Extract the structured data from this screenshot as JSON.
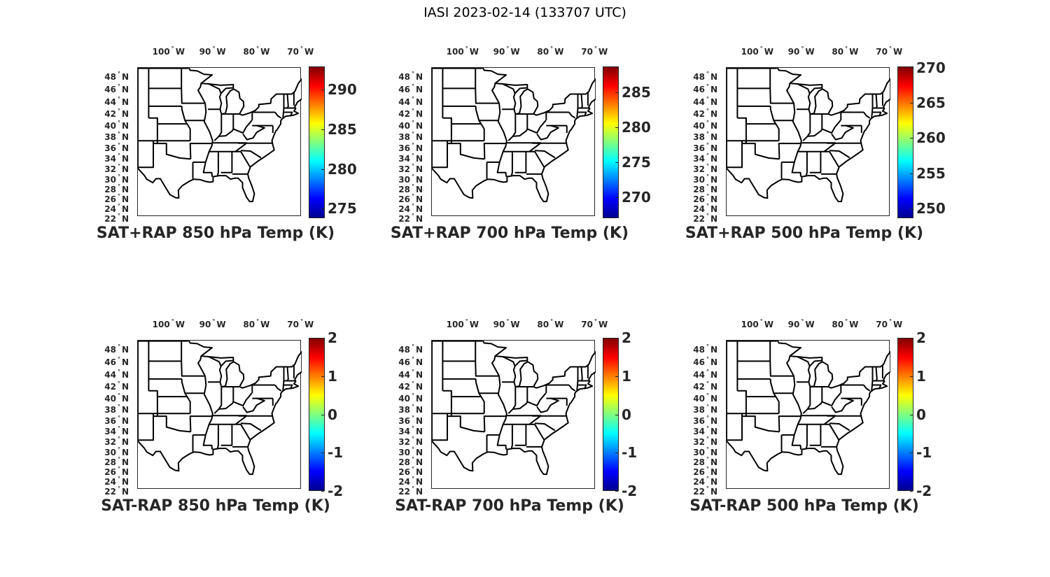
{
  "figure_title": "IASI 2023-02-14 (133707 UTC)",
  "lon_labels": [
    {
      "lon": -100,
      "text": "100",
      "hemi": "W"
    },
    {
      "lon": -90,
      "text": "90",
      "hemi": "W"
    },
    {
      "lon": -80,
      "text": "80",
      "hemi": "W"
    },
    {
      "lon": -70,
      "text": "70",
      "hemi": "W"
    }
  ],
  "lat_labels": [
    {
      "lat": 48,
      "text": "48",
      "hemi": "N"
    },
    {
      "lat": 46,
      "text": "46",
      "hemi": "N"
    },
    {
      "lat": 44,
      "text": "44",
      "hemi": "N"
    },
    {
      "lat": 42,
      "text": "42",
      "hemi": "N"
    },
    {
      "lat": 40,
      "text": "40",
      "hemi": "N"
    },
    {
      "lat": 38,
      "text": "38",
      "hemi": "N"
    },
    {
      "lat": 36,
      "text": "36",
      "hemi": "N"
    },
    {
      "lat": 34,
      "text": "34",
      "hemi": "N"
    },
    {
      "lat": 32,
      "text": "32",
      "hemi": "N"
    },
    {
      "lat": 30,
      "text": "30",
      "hemi": "N"
    },
    {
      "lat": 28,
      "text": "28",
      "hemi": "N"
    },
    {
      "lat": 26,
      "text": "26",
      "hemi": "N"
    },
    {
      "lat": 24,
      "text": "24",
      "hemi": "N"
    },
    {
      "lat": 22,
      "text": "22",
      "hemi": "N"
    }
  ],
  "map_extent": {
    "lon": [
      -106.5,
      -69.2
    ],
    "lat": [
      22,
      49.3
    ]
  },
  "colormap": "jet",
  "panels": [
    {
      "title": "SAT+RAP 850 hPa Temp (K)",
      "clim": [
        273.8,
        292.9
      ],
      "ticks": [
        "275",
        "280",
        "285",
        "290"
      ]
    },
    {
      "title": "SAT+RAP 700 hPa Temp (K)",
      "clim": [
        267.0,
        288.7
      ],
      "ticks": [
        "270",
        "275",
        "280",
        "285"
      ]
    },
    {
      "title": "SAT+RAP 500 hPa Temp (K)",
      "clim": [
        248.6,
        270.2
      ],
      "ticks": [
        "250",
        "255",
        "260",
        "265",
        "270"
      ]
    },
    {
      "title": "SAT-RAP 850 hPa Temp (K)",
      "clim": [
        -2,
        2
      ],
      "ticks": [
        "-2",
        "-1",
        "0",
        "1",
        "2"
      ]
    },
    {
      "title": "SAT-RAP 700 hPa Temp (K)",
      "clim": [
        -2,
        2
      ],
      "ticks": [
        "-2",
        "-1",
        "0",
        "1",
        "2"
      ]
    },
    {
      "title": "SAT-RAP 500 hPa Temp (K)",
      "clim": [
        -2,
        2
      ],
      "ticks": [
        "-2",
        "-1",
        "0",
        "1",
        "2"
      ]
    }
  ]
}
